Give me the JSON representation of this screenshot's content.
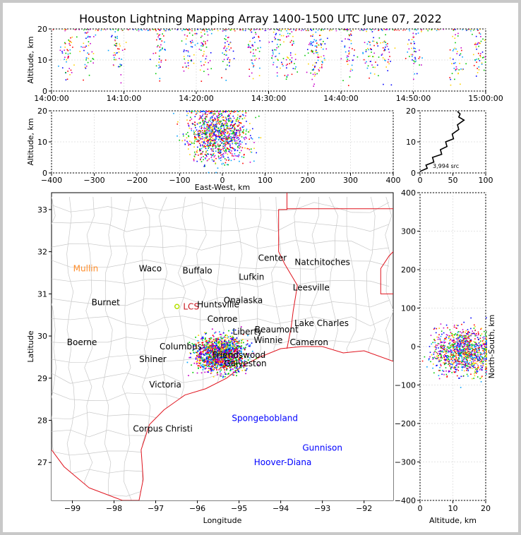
{
  "title": "Houston Lightning Mapping Array 1400-1500 UTC June 07, 2022",
  "colors": {
    "state_border": "#e0141e",
    "county_border": "#c8c8c8",
    "station_black": "#000000",
    "station_blue": "#0000ff",
    "station_orange": "#ff8c28",
    "station_red": "#c8141e",
    "series": [
      "#0000ff",
      "#00a0ff",
      "#00c800",
      "#ffd200",
      "#ff0000",
      "#c800c8"
    ]
  },
  "chart_data": [
    {
      "name": "time-altitude",
      "type": "scatter",
      "ylabel": "Altitude, km",
      "ylim": [
        0,
        20
      ],
      "yticks": [
        "0",
        "10",
        "20"
      ],
      "xticks": [
        "14:00:00",
        "14:10:00",
        "14:20:00",
        "14:30:00",
        "14:40:00",
        "14:50:00",
        "15:00:00"
      ],
      "xlim_minutes": [
        0,
        60
      ],
      "grid": true,
      "clusters_minutes": [
        2,
        5,
        9,
        15,
        19,
        21,
        24,
        28,
        31,
        33,
        36,
        37,
        41,
        44,
        46,
        50,
        56,
        59
      ]
    },
    {
      "name": "eastwest-altitude",
      "type": "scatter",
      "xlabel": "East-West, km",
      "ylabel": "Altitude, km",
      "xlim": [
        -400,
        400
      ],
      "ylim": [
        0,
        20
      ],
      "xticks": [
        "−400",
        "−300",
        "−200",
        "−100",
        "0",
        "100",
        "200",
        "300",
        "400"
      ],
      "yticks": [
        "0",
        "10",
        "20"
      ],
      "center_x_km": -10,
      "spread_x_km": 35,
      "grid": true
    },
    {
      "name": "altitude-histogram",
      "type": "line",
      "xlim": [
        0,
        100
      ],
      "ylim": [
        0,
        20
      ],
      "xticks": [
        "0",
        "50",
        "100"
      ],
      "yticks": [
        "0",
        "10",
        "20"
      ],
      "annotation": "3,994 src",
      "x": [
        2,
        8,
        12,
        18,
        22,
        30,
        34,
        38,
        42,
        48,
        52,
        56,
        60,
        64,
        62,
        58,
        60
      ],
      "y": [
        0.5,
        1.5,
        2.5,
        3.5,
        5,
        6,
        7.5,
        8.5,
        10,
        11,
        12.5,
        14,
        15.5,
        17,
        18,
        19,
        19.8
      ],
      "grid": true
    },
    {
      "name": "plan-view-map",
      "type": "scatter",
      "xlabel": "Longitude",
      "ylabel": "Latitude",
      "xlim": [
        -99.5,
        -91.3
      ],
      "ylim": [
        26.1,
        33.4
      ],
      "xticks": [
        "−99",
        "−98",
        "−97",
        "−96",
        "−95",
        "−94",
        "−93",
        "−92"
      ],
      "yticks": [
        "27",
        "28",
        "29",
        "30",
        "31",
        "32",
        "33"
      ],
      "source_center": [
        -95.45,
        29.6
      ],
      "grid": true,
      "places": [
        {
          "label": "Mullin",
          "lon": -98.68,
          "lat": 31.6,
          "color": "orange"
        },
        {
          "label": "Waco",
          "lon": -97.13,
          "lat": 31.6,
          "color": "black"
        },
        {
          "label": "Buffalo",
          "lon": -96.0,
          "lat": 31.55,
          "color": "black"
        },
        {
          "label": "Lufkin",
          "lon": -94.7,
          "lat": 31.4,
          "color": "black"
        },
        {
          "label": "Center",
          "lon": -94.2,
          "lat": 31.85,
          "color": "black"
        },
        {
          "label": "Natchitoches",
          "lon": -93.0,
          "lat": 31.75,
          "color": "black"
        },
        {
          "label": "Leesville",
          "lon": -93.27,
          "lat": 31.15,
          "color": "black"
        },
        {
          "label": "Burnet",
          "lon": -98.2,
          "lat": 30.8,
          "color": "black"
        },
        {
          "label": "LCS",
          "lon": -96.15,
          "lat": 30.7,
          "color": "red"
        },
        {
          "label": "Huntsville",
          "lon": -95.5,
          "lat": 30.75,
          "color": "black"
        },
        {
          "label": "Onalaska",
          "lon": -94.9,
          "lat": 30.85,
          "color": "black"
        },
        {
          "label": "Conroe",
          "lon": -95.4,
          "lat": 30.4,
          "color": "black"
        },
        {
          "label": "Liberty",
          "lon": -94.8,
          "lat": 30.1,
          "color": "black"
        },
        {
          "label": "Beaumont",
          "lon": -94.1,
          "lat": 30.15,
          "color": "black"
        },
        {
          "label": "Lake Charles",
          "lon": -93.02,
          "lat": 30.3,
          "color": "black"
        },
        {
          "label": "Winnie",
          "lon": -94.3,
          "lat": 29.9,
          "color": "black"
        },
        {
          "label": "Cameron",
          "lon": -93.32,
          "lat": 29.85,
          "color": "black"
        },
        {
          "label": "Boerne",
          "lon": -98.77,
          "lat": 29.85,
          "color": "black"
        },
        {
          "label": "Columbus",
          "lon": -96.4,
          "lat": 29.75,
          "color": "black"
        },
        {
          "label": "Friendswood",
          "lon": -95.0,
          "lat": 29.55,
          "color": "black"
        },
        {
          "label": "Galveston",
          "lon": -94.85,
          "lat": 29.35,
          "color": "black"
        },
        {
          "label": "Shiner",
          "lon": -97.07,
          "lat": 29.45,
          "color": "black"
        },
        {
          "label": "Victoria",
          "lon": -96.77,
          "lat": 28.85,
          "color": "black"
        },
        {
          "label": "Corpus Christi",
          "lon": -96.83,
          "lat": 27.8,
          "color": "black"
        },
        {
          "label": "Spongebobland",
          "lon": -94.38,
          "lat": 28.05,
          "color": "blue"
        },
        {
          "label": "Gunnison",
          "lon": -93.0,
          "lat": 27.35,
          "color": "blue"
        },
        {
          "label": "Hoover-Diana",
          "lon": -93.95,
          "lat": 27.0,
          "color": "blue"
        }
      ]
    },
    {
      "name": "altitude-northsouth",
      "type": "scatter",
      "xlabel": "Altitude, km",
      "ylabel": "North-South, km",
      "xlim": [
        0,
        20
      ],
      "ylim": [
        -400,
        400
      ],
      "xticks": [
        "0",
        "10",
        "20"
      ],
      "yticks": [
        "−400",
        "−300",
        "−200",
        "−100",
        "0",
        "100",
        "200",
        "300",
        "400"
      ],
      "center_y_km": -10,
      "spread_y_km": 30,
      "grid": true
    }
  ]
}
